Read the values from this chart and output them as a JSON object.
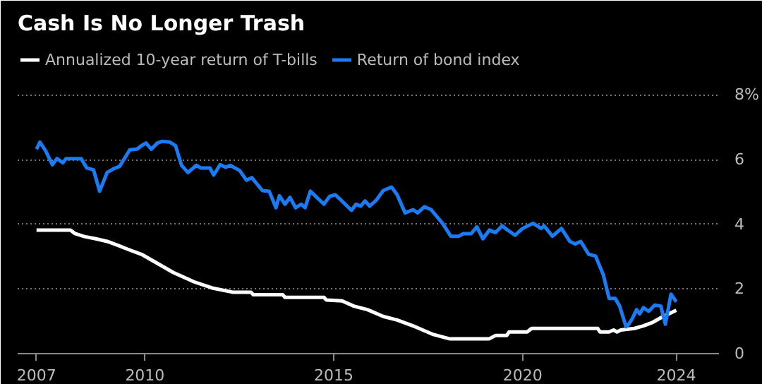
{
  "chart_data": {
    "type": "line",
    "title": "Cash Is No Longer Trash",
    "xlim": [
      2006.63,
      2025.2
    ],
    "ylim": [
      0,
      9.6
    ],
    "xticks": [
      {
        "value": 2007.13,
        "label": "2007"
      },
      2010,
      2015,
      2020,
      {
        "value": 2024.07,
        "label": "2024"
      }
    ],
    "yticks": [
      0,
      2,
      4,
      6,
      {
        "value": 8,
        "label": "8%"
      }
    ],
    "grid": "y",
    "legend": "top left",
    "marker": "none",
    "line_style": "solid",
    "series": [
      {
        "name": "Annualized 10-year return of T-bills",
        "color": "#ffffff",
        "x": [
          2007.13,
          2008.03,
          2008.15,
          2008.4,
          2008.7,
          2009.0,
          2009.3,
          2009.54,
          2009.91,
          2010.27,
          2010.75,
          2011.3,
          2011.78,
          2012.32,
          2012.81,
          2012.87,
          2013.65,
          2013.71,
          2014.74,
          2014.8,
          2015.22,
          2015.53,
          2015.89,
          2016.31,
          2016.68,
          2017.16,
          2017.64,
          2018.06,
          2019.12,
          2019.28,
          2019.58,
          2019.64,
          2020.12,
          2020.24,
          2021.99,
          2022.05,
          2022.29,
          2022.41,
          2022.5,
          2022.6,
          2022.96,
          2023.2,
          2023.45,
          2023.69,
          2024.07
        ],
        "values": [
          3.82,
          3.82,
          3.71,
          3.62,
          3.55,
          3.47,
          3.34,
          3.23,
          3.07,
          2.83,
          2.51,
          2.22,
          2.03,
          1.9,
          1.9,
          1.82,
          1.82,
          1.74,
          1.74,
          1.66,
          1.63,
          1.47,
          1.36,
          1.15,
          1.04,
          0.83,
          0.59,
          0.46,
          0.46,
          0.56,
          0.56,
          0.67,
          0.67,
          0.78,
          0.78,
          0.67,
          0.67,
          0.73,
          0.67,
          0.73,
          0.78,
          0.86,
          0.97,
          1.13,
          1.34
        ]
      },
      {
        "name": "Return of bond index",
        "color": "#1a7cf5",
        "x": [
          2007.13,
          2007.22,
          2007.37,
          2007.55,
          2007.67,
          2007.83,
          2007.91,
          2008.31,
          2008.46,
          2008.64,
          2008.8,
          2009.0,
          2009.16,
          2009.33,
          2009.6,
          2009.79,
          2009.91,
          2010.03,
          2010.17,
          2010.33,
          2010.45,
          2010.66,
          2010.81,
          2010.97,
          2011.14,
          2011.36,
          2011.48,
          2011.72,
          2011.82,
          2011.99,
          2012.14,
          2012.26,
          2012.51,
          2012.69,
          2012.83,
          2013.11,
          2013.29,
          2013.47,
          2013.56,
          2013.71,
          2013.84,
          2013.99,
          2014.14,
          2014.24,
          2014.38,
          2014.74,
          2014.89,
          2015.04,
          2015.16,
          2015.47,
          2015.59,
          2015.71,
          2015.83,
          2015.95,
          2016.13,
          2016.31,
          2016.53,
          2016.68,
          2016.89,
          2017.1,
          2017.22,
          2017.4,
          2017.58,
          2017.88,
          2018.1,
          2018.31,
          2018.43,
          2018.64,
          2018.79,
          2018.95,
          2019.12,
          2019.28,
          2019.46,
          2019.58,
          2019.8,
          2020.0,
          2020.28,
          2020.49,
          2020.57,
          2020.79,
          2021.03,
          2021.25,
          2021.39,
          2021.54,
          2021.75,
          2021.93,
          2022.14,
          2022.29,
          2022.45,
          2022.57,
          2022.74,
          2022.81,
          2022.9,
          2023.02,
          2023.1,
          2023.2,
          2023.34,
          2023.5,
          2023.66,
          2023.78,
          2023.93,
          2024.07
        ],
        "values": [
          6.32,
          6.54,
          6.27,
          5.84,
          6.03,
          5.9,
          6.03,
          6.03,
          5.74,
          5.68,
          5.02,
          5.6,
          5.71,
          5.79,
          6.3,
          6.32,
          6.43,
          6.51,
          6.32,
          6.51,
          6.56,
          6.54,
          6.43,
          5.82,
          5.6,
          5.82,
          5.74,
          5.74,
          5.52,
          5.84,
          5.76,
          5.82,
          5.66,
          5.36,
          5.44,
          5.04,
          5.02,
          4.51,
          4.88,
          4.62,
          4.83,
          4.51,
          4.62,
          4.51,
          5.02,
          4.62,
          4.86,
          4.91,
          4.78,
          4.43,
          4.62,
          4.56,
          4.72,
          4.56,
          4.75,
          5.04,
          5.15,
          4.91,
          4.35,
          4.45,
          4.35,
          4.54,
          4.45,
          4.03,
          3.63,
          3.63,
          3.71,
          3.71,
          3.92,
          3.55,
          3.82,
          3.74,
          3.95,
          3.84,
          3.66,
          3.87,
          4.03,
          3.87,
          3.95,
          3.63,
          3.87,
          3.47,
          3.39,
          3.47,
          3.07,
          3.02,
          2.43,
          1.71,
          1.71,
          1.47,
          0.83,
          0.91,
          1.07,
          1.36,
          1.23,
          1.42,
          1.31,
          1.5,
          1.47,
          0.91,
          1.84,
          1.6
        ]
      }
    ]
  }
}
